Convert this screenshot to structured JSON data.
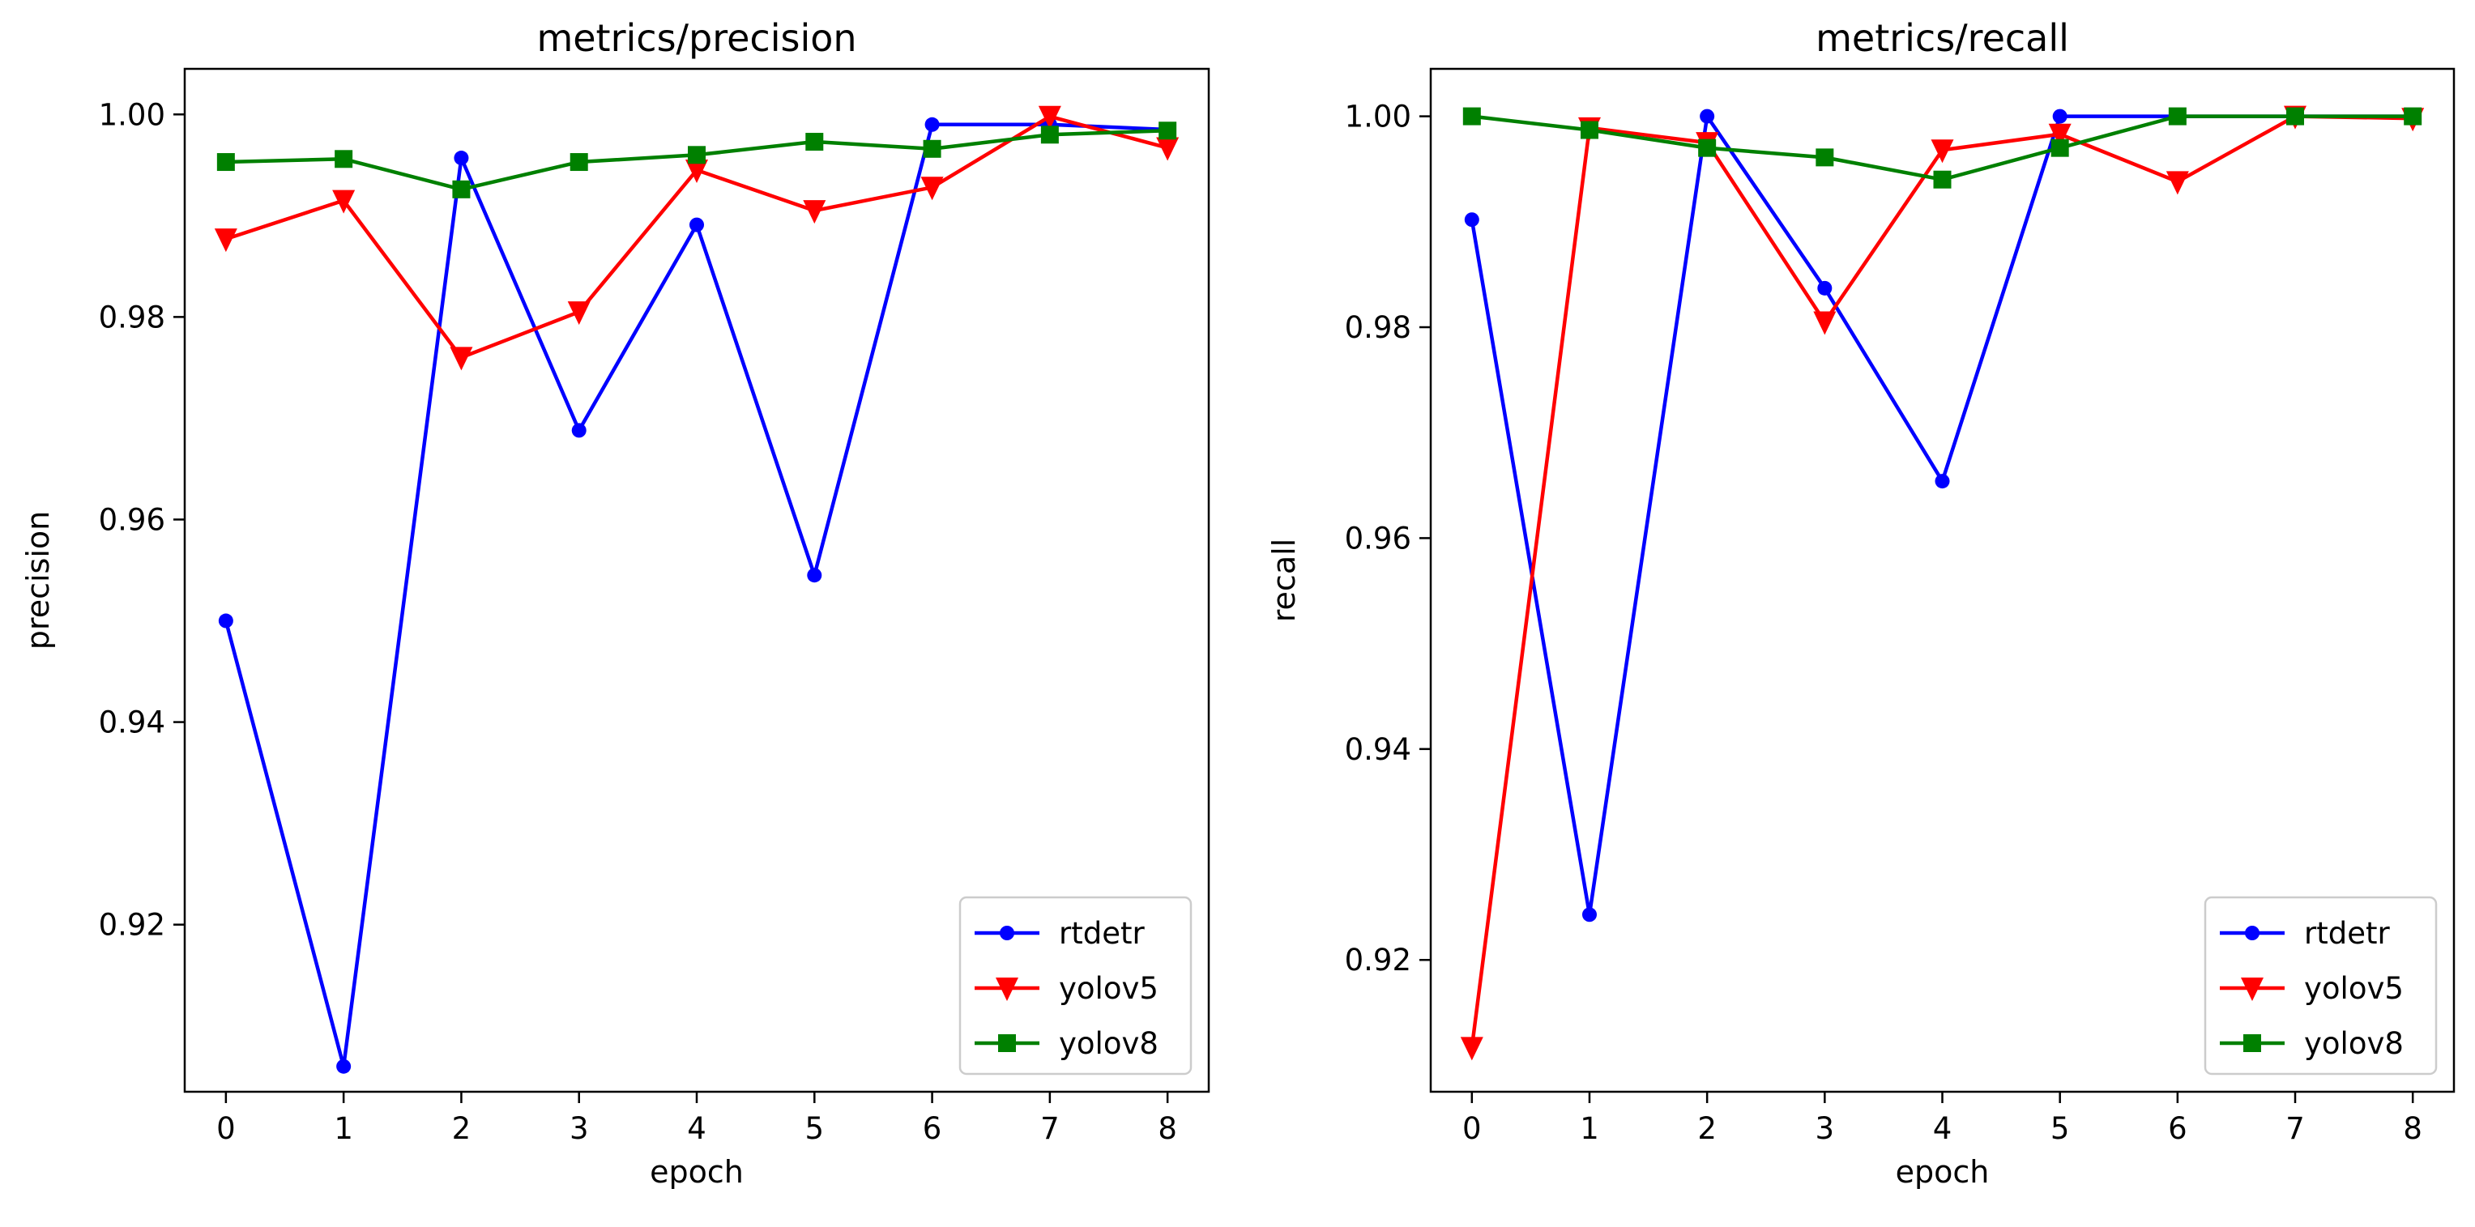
{
  "chart_data": [
    {
      "type": "line",
      "title": "metrics/precision",
      "xlabel": "epoch",
      "ylabel": "precision",
      "x": [
        0,
        1,
        2,
        3,
        4,
        5,
        6,
        7,
        8
      ],
      "xlim": [
        -0.35,
        8.35
      ],
      "ylim": [
        0.9035,
        1.0045
      ],
      "yticks": [
        0.92,
        0.94,
        0.96,
        0.98,
        1.0
      ],
      "ytick_labels": [
        "0.92",
        "0.94",
        "0.96",
        "0.98",
        "1.00"
      ],
      "xticks": [
        0,
        1,
        2,
        3,
        4,
        5,
        6,
        7,
        8
      ],
      "xtick_labels": [
        "0",
        "1",
        "2",
        "3",
        "4",
        "5",
        "6",
        "7",
        "8"
      ],
      "grid": false,
      "legend": "lower-right",
      "series": [
        {
          "name": "rtdetr",
          "color": "#0000ff",
          "marker": "circle",
          "values": [
            0.95,
            0.906,
            0.9957,
            0.9688,
            0.9891,
            0.9545,
            0.999,
            0.999,
            0.9985
          ]
        },
        {
          "name": "yolov5",
          "color": "#ff0000",
          "marker": "triangle-down",
          "values": [
            0.9877,
            0.9915,
            0.976,
            0.9805,
            0.9945,
            0.9905,
            0.9928,
            0.9998,
            0.9967
          ]
        },
        {
          "name": "yolov8",
          "color": "#008000",
          "marker": "square",
          "values": [
            0.9953,
            0.9956,
            0.9926,
            0.9953,
            0.996,
            0.9973,
            0.9966,
            0.998,
            0.9984
          ]
        }
      ]
    },
    {
      "type": "line",
      "title": "metrics/recall",
      "xlabel": "epoch",
      "ylabel": "recall",
      "x": [
        0,
        1,
        2,
        3,
        4,
        5,
        6,
        7,
        8
      ],
      "xlim": [
        -0.35,
        8.35
      ],
      "ylim": [
        0.9075,
        1.0045
      ],
      "yticks": [
        0.92,
        0.94,
        0.96,
        0.98,
        1.0
      ],
      "ytick_labels": [
        "0.92",
        "0.94",
        "0.96",
        "0.98",
        "1.00"
      ],
      "xticks": [
        0,
        1,
        2,
        3,
        4,
        5,
        6,
        7,
        8
      ],
      "xtick_labels": [
        "0",
        "1",
        "2",
        "3",
        "4",
        "5",
        "6",
        "7",
        "8"
      ],
      "grid": false,
      "legend": "lower-right",
      "series": [
        {
          "name": "rtdetr",
          "color": "#0000ff",
          "marker": "circle",
          "values": [
            0.9902,
            0.9243,
            1.0,
            0.9837,
            0.9654,
            1.0,
            1.0,
            1.0,
            1.0
          ]
        },
        {
          "name": "yolov5",
          "color": "#ff0000",
          "marker": "triangle-down",
          "values": [
            0.9117,
            0.9989,
            0.9975,
            0.9805,
            0.9968,
            0.9983,
            0.9938,
            1.0,
            0.9998
          ]
        },
        {
          "name": "yolov8",
          "color": "#008000",
          "marker": "square",
          "values": [
            1.0,
            0.9987,
            0.997,
            0.9961,
            0.994,
            0.997,
            1.0,
            1.0,
            1.0
          ]
        }
      ]
    }
  ]
}
